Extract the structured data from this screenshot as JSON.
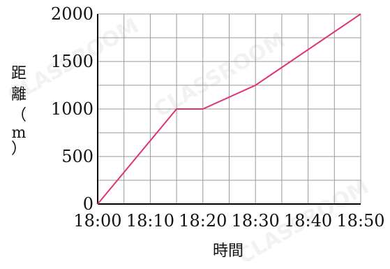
{
  "chart_data": {
    "type": "line",
    "title": "",
    "xlabel": "時間",
    "ylabel": "距離（m）",
    "x": [
      "18:00",
      "18:15",
      "18:20",
      "18:30",
      "18:50"
    ],
    "x_minutes": [
      0,
      15,
      20,
      30,
      50
    ],
    "series": [
      {
        "values": [
          0,
          1000,
          1000,
          1250,
          2000
        ],
        "color": "#e0307a"
      }
    ],
    "xlim": [
      "18:00",
      "18:50"
    ],
    "ylim": [
      0,
      2000
    ],
    "x_tick_labels": [
      "18:00",
      "18:10",
      "18:20",
      "18:30",
      "18:40",
      "18:50"
    ],
    "y_tick_labels": [
      "0",
      "500",
      "1000",
      "1500",
      "2000"
    ],
    "ylabel_chars": [
      "距",
      "離",
      "（",
      "m",
      "）"
    ],
    "grid": true,
    "watermark_text": "CLASSROOM"
  }
}
